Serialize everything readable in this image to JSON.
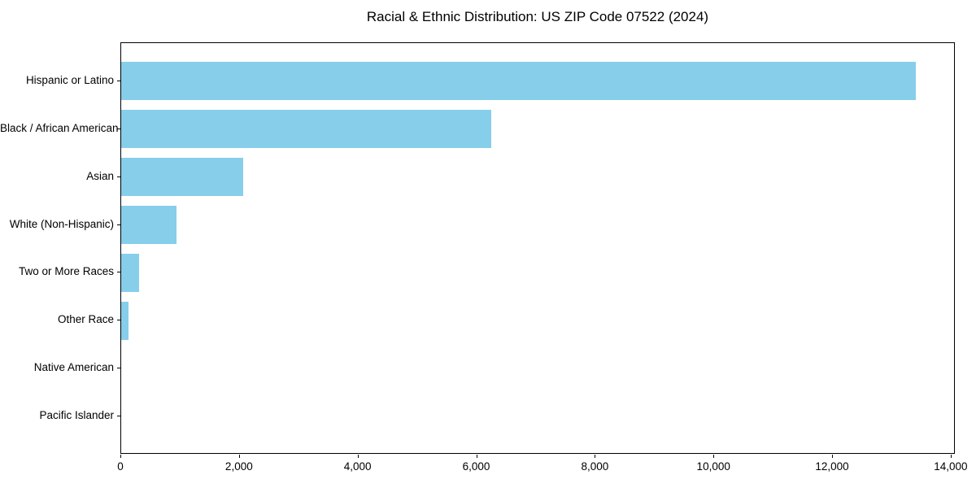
{
  "chart_data": {
    "type": "bar",
    "orientation": "horizontal",
    "title": "Racial & Ethnic Distribution: US ZIP Code 07522 (2024)",
    "categories": [
      "Hispanic or Latino",
      "Black / African American",
      "Asian",
      "White (Non-Hispanic)",
      "Two or More Races",
      "Other Race",
      "Native American",
      "Pacific Islander"
    ],
    "values": [
      13400,
      6240,
      2060,
      930,
      300,
      120,
      0,
      0
    ],
    "xlabel": "",
    "ylabel": "",
    "xlim": [
      0,
      14070
    ],
    "x_ticks": [
      0,
      2000,
      4000,
      6000,
      8000,
      10000,
      12000,
      14000
    ],
    "x_tick_labels": [
      "0",
      "2,000",
      "4,000",
      "6,000",
      "8,000",
      "10,000",
      "12,000",
      "14,000"
    ],
    "bar_color": "#87CEEB",
    "grid": false,
    "legend": null
  }
}
